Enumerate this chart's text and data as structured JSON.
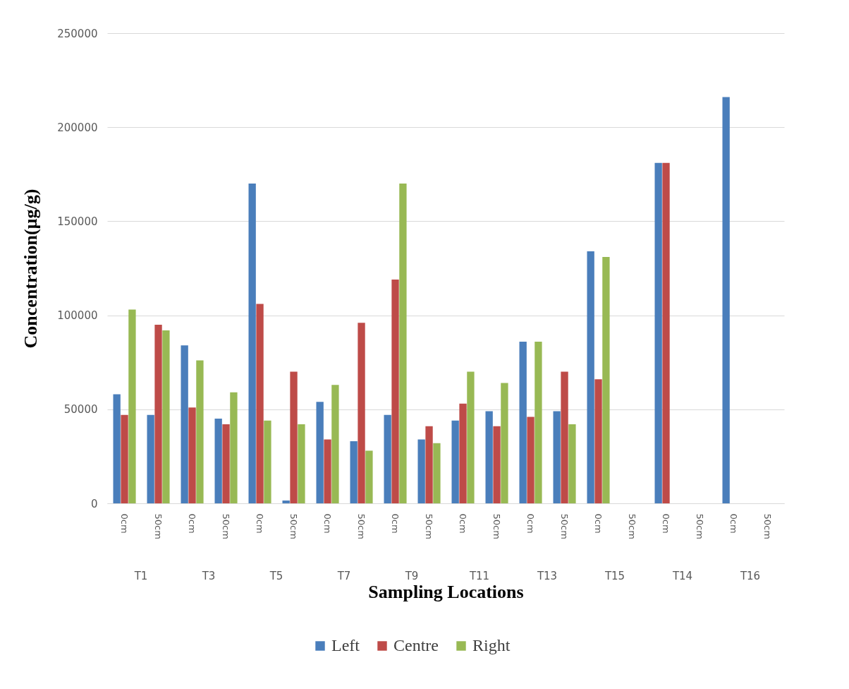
{
  "chart_data": {
    "type": "bar",
    "xlabel": "Sampling Locations",
    "ylabel": "Concentration(µg/g)",
    "categories": [
      "0cm",
      "50cm",
      "0cm",
      "50cm",
      "0cm",
      "50cm",
      "0cm",
      "50cm",
      "0cm",
      "50cm",
      "0cm",
      "50cm",
      "0cm",
      "50cm",
      "0cm",
      "50cm",
      "0cm",
      "50cm",
      "0cm",
      "50cm"
    ],
    "annotations": [
      "T1",
      "T3",
      "T5",
      "T7",
      "T9",
      "T11",
      "T13",
      "T15",
      "T14",
      "T16"
    ],
    "series": [
      {
        "name": "Left",
        "color": "#4a7ebb",
        "values": [
          58000,
          47000,
          84000,
          45000,
          170000,
          1500,
          54000,
          33000,
          47000,
          34000,
          44000,
          49000,
          86000,
          49000,
          134000,
          null,
          181000,
          null,
          216000,
          null
        ]
      },
      {
        "name": "Centre",
        "color": "#be4b48",
        "values": [
          47000,
          95000,
          51000,
          42000,
          106000,
          70000,
          34000,
          96000,
          119000,
          41000,
          53000,
          41000,
          46000,
          70000,
          66000,
          null,
          181000,
          null,
          null,
          null
        ]
      },
      {
        "name": "Right",
        "color": "#98b954",
        "values": [
          103000,
          92000,
          76000,
          59000,
          44000,
          42000,
          63000,
          28000,
          170000,
          32000,
          70000,
          64000,
          86000,
          42000,
          131000,
          null,
          null,
          null,
          null,
          null
        ]
      }
    ],
    "ylim": [
      0,
      250000
    ],
    "yticks": [
      0,
      50000,
      100000,
      150000,
      200000,
      250000
    ],
    "grid": "y",
    "legend": "bottom"
  }
}
